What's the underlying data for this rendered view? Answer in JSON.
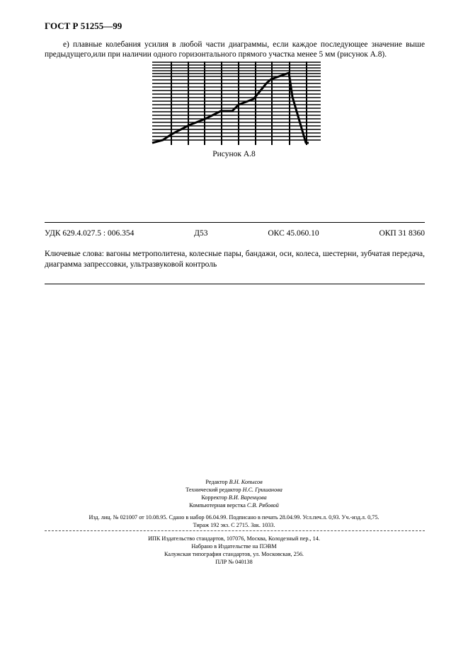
{
  "header": {
    "standard_id": "ГОСТ Р 51255—99"
  },
  "body": {
    "paragraph": "е) плавные колебания усилия в любой части диаграммы, если каждое последующее значение выше предыдущего,или при наличии одного горизонтального прямого участка менее 5 мм (рисунок А.8).",
    "figure_caption": "Рисунок А.8"
  },
  "classification": {
    "udk": "УДК 629.4.027.5 : 006.354",
    "d": "Д53",
    "oks": "ОКС 45.060.10",
    "okp": "ОКП 31 8360"
  },
  "keywords": "Ключевые слова: вагоны метрополитена, колесные пары, бандажи, оси, колеса, шестерни, зубчатая передача, диаграмма запрессовки, ультразвуковой контроль",
  "credits": [
    {
      "role": "Редактор",
      "name": "В.Н. Копысов"
    },
    {
      "role": "Технический редактор",
      "name": "Н.С. Гришанова"
    },
    {
      "role": "Корректор",
      "name": "В.И. Варенцова"
    },
    {
      "role": "Компьютерная верстка",
      "name": "С.В. Рябовой"
    }
  ],
  "publication": {
    "line1": "Изд. лиц. № 021007 от 10.08.95. Сдано в набор 06.04.99. Подписано в печать 28.04.99. Усл.печ.л. 0,93. Уч.-изд.л. 0,75.",
    "line2": "Тираж  192  экз. С 2715. Зак. 1033."
  },
  "publisher": [
    "ИПК Издательство стандартов, 107076, Москва, Колодезный пер., 14.",
    "Набрано в Издательстве на ПЭВМ",
    "Калужская типография стандартов, ул. Московская, 256.",
    "ПЛР № 040138"
  ]
}
